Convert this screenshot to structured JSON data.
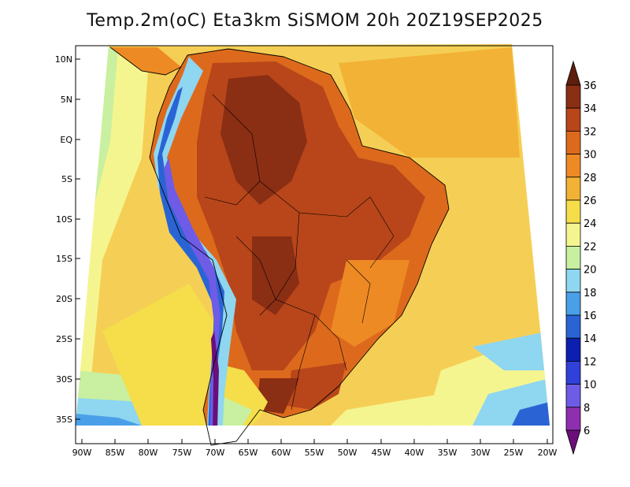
{
  "title": "Temp.2m(oC) Eta3km SiSMOM 20h 20Z19SEP2025",
  "lat_labels": [
    "10N",
    "5N",
    "EQ",
    "5S",
    "10S",
    "15S",
    "20S",
    "25S",
    "30S",
    "35S"
  ],
  "lon_labels": [
    "90W",
    "85W",
    "80W",
    "75W",
    "70W",
    "65W",
    "60W",
    "55W",
    "50W",
    "45W",
    "40W",
    "35W",
    "30W",
    "25W",
    "20W"
  ],
  "colorbar": {
    "levels": [
      "6",
      "8",
      "10",
      "12",
      "14",
      "16",
      "18",
      "20",
      "22",
      "24",
      "26",
      "28",
      "30",
      "32",
      "34",
      "36"
    ],
    "colors": [
      "#6a0f7a",
      "#8e2fb0",
      "#6e5ce6",
      "#3140d8",
      "#0d1fb0",
      "#2a64d4",
      "#4aa0e8",
      "#8fd6f0",
      "#c8f0a0",
      "#f5f590",
      "#f5de4a",
      "#f2b236",
      "#ee8a24",
      "#dd6a1c",
      "#b8461a",
      "#8a2e14",
      "#5e1e0e"
    ]
  }
}
